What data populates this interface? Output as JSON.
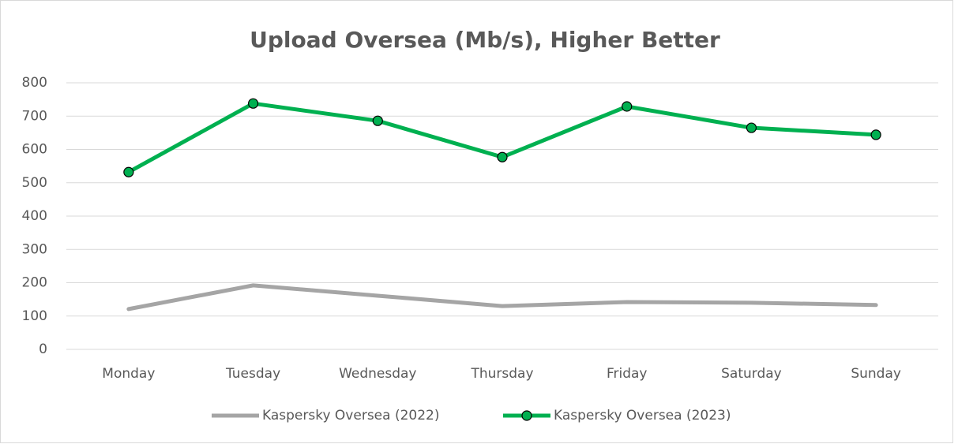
{
  "chart_data": {
    "type": "line",
    "title": "Upload Oversea (Mb/s), Higher Better",
    "categories": [
      "Monday",
      "Tuesday",
      "Wednesday",
      "Thursday",
      "Friday",
      "Saturday",
      "Sunday"
    ],
    "series": [
      {
        "name": "Kaspersky Oversea (2022)",
        "color": "#a5a5a5",
        "values": [
          121,
          192,
          161,
          130,
          142,
          140,
          133
        ]
      },
      {
        "name": "Kaspersky Oversea (2023)",
        "color": "#00b050",
        "values": [
          532,
          738,
          686,
          577,
          729,
          665,
          644
        ]
      }
    ],
    "ylim": [
      0,
      800
    ],
    "yticks": [
      0,
      100,
      200,
      300,
      400,
      500,
      600,
      700,
      800
    ],
    "grid": true,
    "legend": "bottom"
  }
}
